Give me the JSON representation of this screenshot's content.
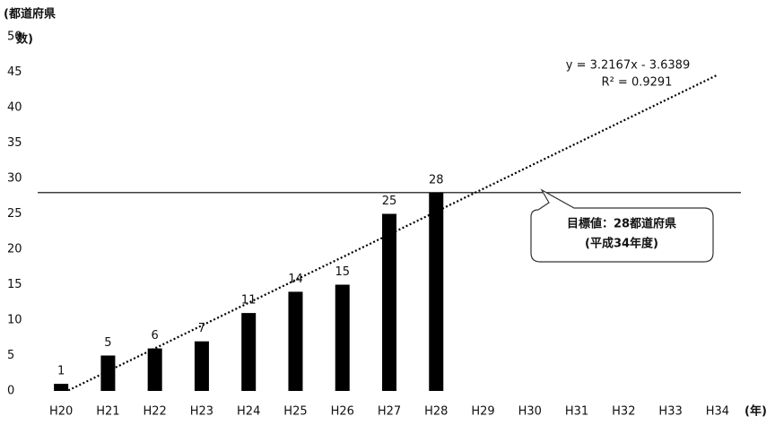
{
  "chart_data": {
    "type": "bar",
    "y_axis_label": "(都道府県",
    "y_axis_label_2": "数)",
    "x_axis_label": "(年)",
    "categories": [
      "H20",
      "H21",
      "H22",
      "H23",
      "H24",
      "H25",
      "H26",
      "H27",
      "H28",
      "H29",
      "H30",
      "H31",
      "H32",
      "H33",
      "H34"
    ],
    "values": [
      1,
      5,
      6,
      7,
      11,
      14,
      15,
      25,
      28,
      null,
      null,
      null,
      null,
      null,
      null
    ],
    "color": "#000000",
    "ylim": [
      0,
      50
    ],
    "yticks": [
      0,
      5,
      10,
      15,
      20,
      25,
      30,
      35,
      40,
      45,
      50
    ],
    "trendline": {
      "slope": 3.2167,
      "intercept": -3.6389,
      "equation": "y = 3.2167x - 3.6389",
      "r2": "R² = 0.9291"
    },
    "target": {
      "value": 28,
      "label": "目標値：28都道府県",
      "sublabel": "(平成34年度)"
    }
  }
}
